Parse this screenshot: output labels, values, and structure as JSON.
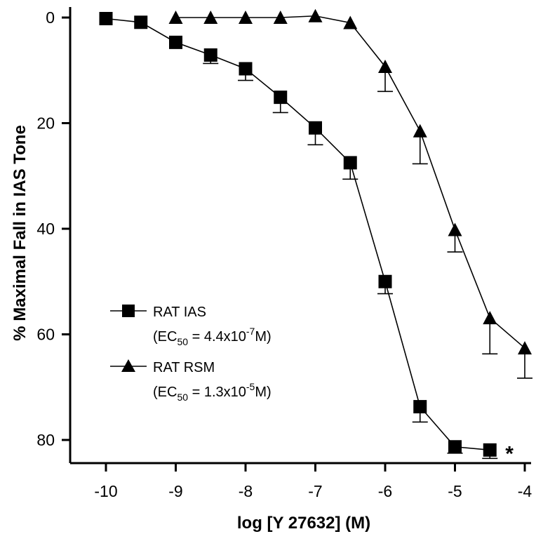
{
  "chart_data": {
    "type": "line",
    "title": "",
    "xlabel": "log [Y 27632] (M)",
    "ylabel": "% Maximal Fall in IAS Tone",
    "xlim": [
      -10.5,
      -3.9
    ],
    "ylim": [
      0,
      85
    ],
    "y_inverted": true,
    "grid": false,
    "legend_position": "lower-left",
    "x_ticks": [
      -10,
      -9,
      -8,
      -7,
      -6,
      -5,
      -4
    ],
    "x_tick_labels": [
      "-10",
      "-9",
      "-8",
      "-7",
      "-6",
      "-5",
      "-4"
    ],
    "y_ticks": [
      0,
      20,
      40,
      60,
      80
    ],
    "y_tick_labels": [
      "0",
      "20",
      "40",
      "60",
      "80"
    ],
    "annotation": "*",
    "annotation_anchor": {
      "x": -4.5,
      "y": 81.5
    },
    "series": [
      {
        "name": "RAT IAS",
        "sub_label": "(EC50 = 4.4x10-7M)",
        "ec50_prefix": "(EC",
        "ec50_sub": "50",
        "ec50_value": " = 4.4x10",
        "ec50_exp": "-7",
        "ec50_suffix": "M)",
        "marker": "square",
        "color": "#000000",
        "x": [
          -10,
          -9.5,
          -9,
          -8.5,
          -8,
          -7.5,
          -7,
          -6.5,
          -6,
          -5.5,
          -5,
          -4.5
        ],
        "y": [
          0.2,
          0.9,
          4.7,
          7.1,
          9.7,
          15.1,
          20.9,
          27.5,
          50.0,
          73.7,
          81.3,
          81.9
        ],
        "err": [
          0,
          0,
          0,
          1.6,
          2.2,
          2.9,
          3.2,
          3.1,
          2.3,
          2.9,
          1.2,
          1.6
        ]
      },
      {
        "name": "RAT RSM",
        "sub_label": "(EC50 = 1.3x10-5M)",
        "ec50_prefix": "(EC",
        "ec50_sub": "50",
        "ec50_value": " = 1.3x10",
        "ec50_exp": "-5",
        "ec50_suffix": "M)",
        "marker": "triangle",
        "color": "#000000",
        "x": [
          -9,
          -8.5,
          -8,
          -7.5,
          -7,
          -6.5,
          -6,
          -5.5,
          -5,
          -4.5,
          -4
        ],
        "y": [
          0,
          0,
          0,
          0,
          -0.3,
          1.0,
          9.3,
          21.5,
          40.2,
          56.9,
          62.6
        ],
        "err": [
          0,
          0,
          0,
          0,
          0,
          0,
          4.7,
          6.2,
          4.2,
          6.8,
          5.7
        ]
      }
    ]
  }
}
